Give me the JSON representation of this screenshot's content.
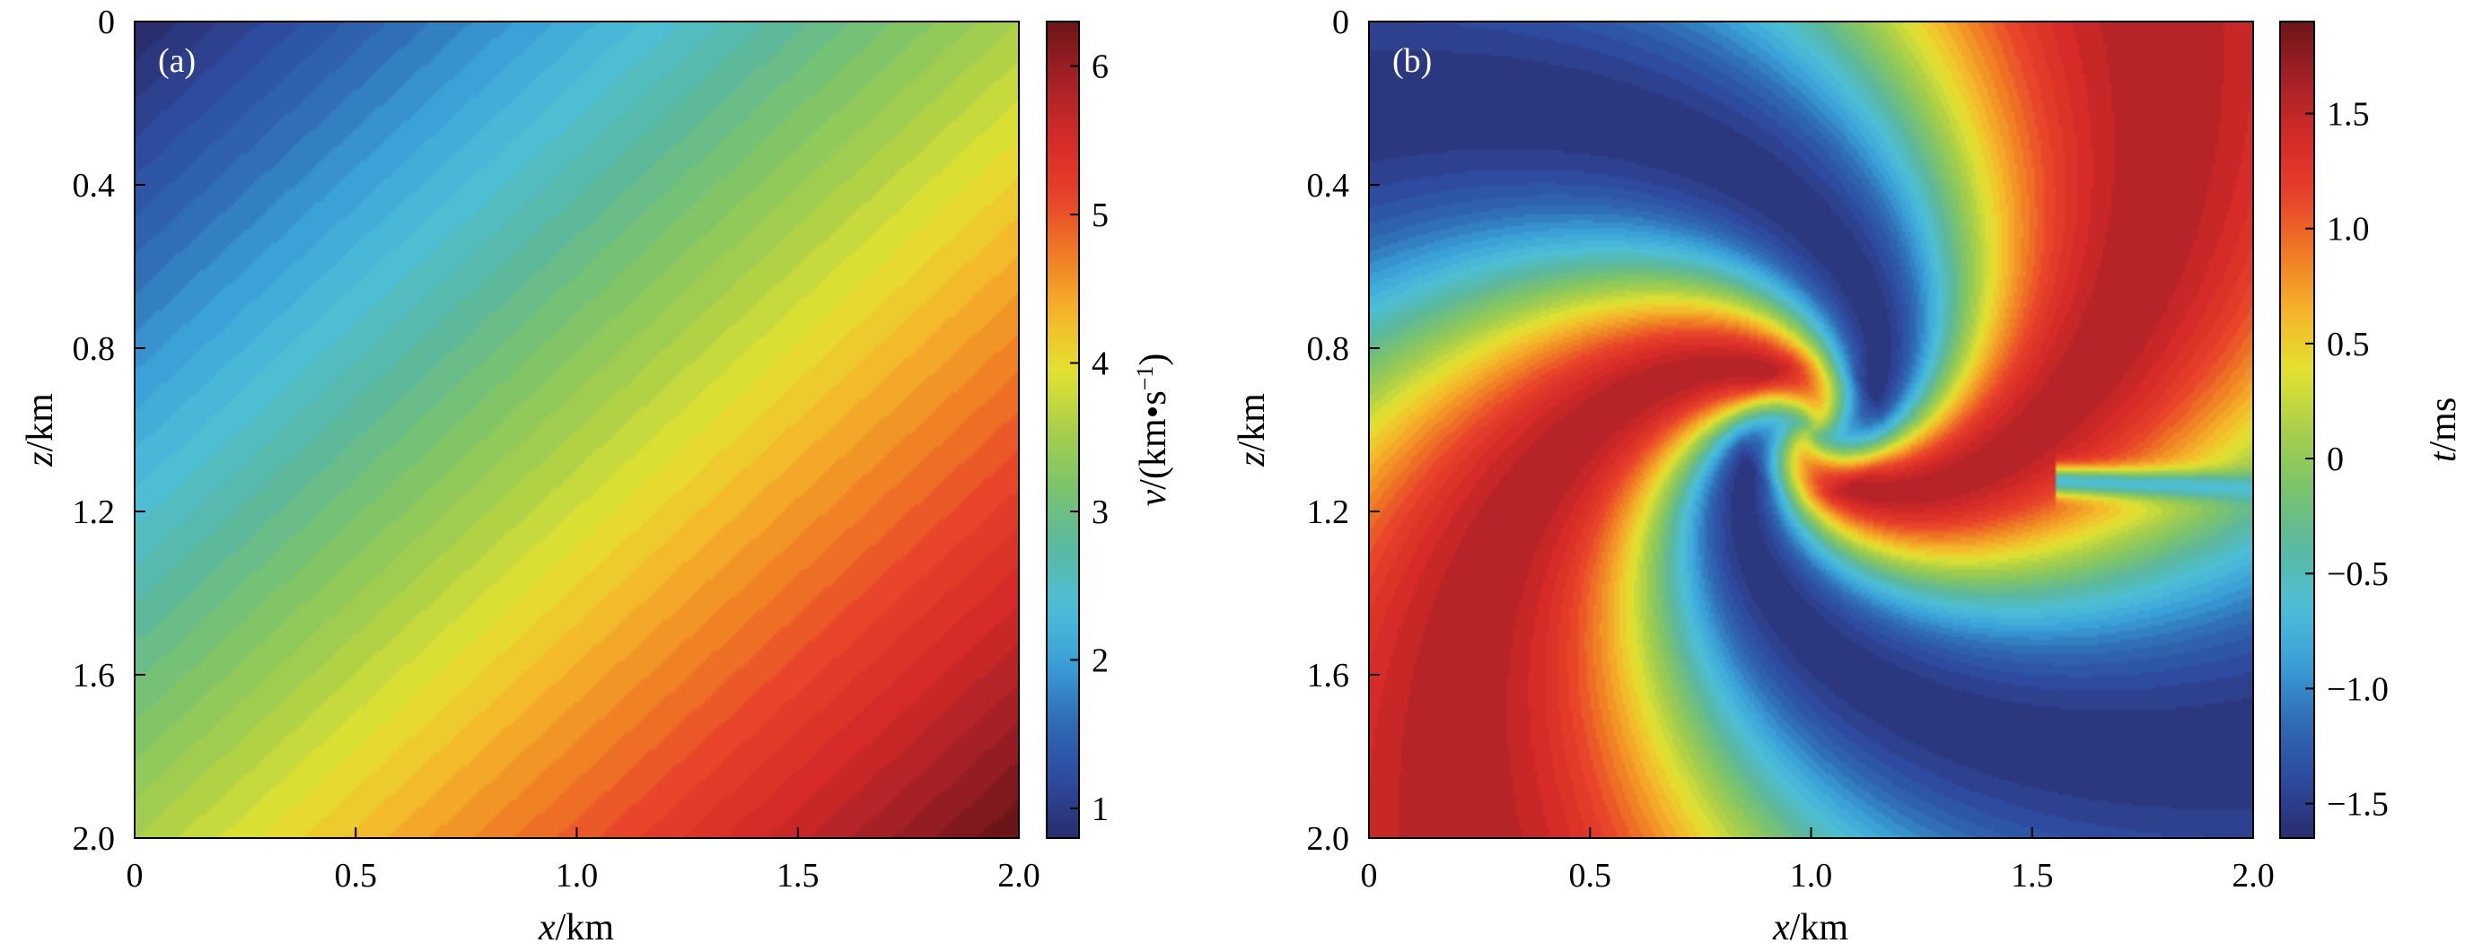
{
  "chart_data": [
    {
      "type": "heatmap",
      "panel_label": "(a)",
      "xlabel_var": "x",
      "xlabel_unit": "/km",
      "ylabel_var": "z",
      "ylabel_unit": "/km",
      "x_ticks": [
        "0",
        "0.5",
        "1.0",
        "1.5",
        "2.0"
      ],
      "y_ticks": [
        "0",
        "0.4",
        "0.8",
        "1.2",
        "1.6",
        "2.0"
      ],
      "x_tick_values": [
        0,
        0.5,
        1.0,
        1.5,
        2.0
      ],
      "y_tick_values": [
        0,
        0.4,
        0.8,
        1.2,
        1.6,
        2.0
      ],
      "xlim": [
        0,
        2.0
      ],
      "ylim": [
        0,
        2.0
      ],
      "y_inverted": true,
      "field_description": "velocity increasing linearly along diagonal from top-left to bottom-right",
      "field": {
        "v_at_x0_z0": 0.8,
        "v_at_x2_z2": 6.3,
        "vmin": 0.8,
        "vmax": 6.3
      },
      "colorbar": {
        "label_var": "v",
        "label_unit": "/(km•s",
        "label_sup": "−1",
        "label_close": ")",
        "ticks": [
          "1",
          "2",
          "3",
          "4",
          "5",
          "6"
        ],
        "tick_values": [
          1,
          2,
          3,
          4,
          5,
          6
        ],
        "range": [
          0.8,
          6.3
        ],
        "colormap": "jet"
      }
    },
    {
      "type": "heatmap",
      "panel_label": "(b)",
      "xlabel_var": "x",
      "xlabel_unit": "/km",
      "ylabel_var": "z",
      "ylabel_unit": "/km",
      "x_ticks": [
        "0",
        "0.5",
        "1.0",
        "1.5",
        "2.0"
      ],
      "y_ticks": [
        "0",
        "0.4",
        "0.8",
        "1.2",
        "1.6",
        "2.0"
      ],
      "x_tick_values": [
        0,
        0.5,
        1.0,
        1.5,
        2.0
      ],
      "y_tick_values": [
        0,
        0.4,
        0.8,
        1.2,
        1.6,
        2.0
      ],
      "xlim": [
        0,
        2.0
      ],
      "ylim": [
        0,
        2.0
      ],
      "y_inverted": true,
      "source_point": {
        "x": 1.0,
        "z": 1.0
      },
      "field_description": "travel-time difference with curved positive and negative lobes radiating from the source at (1.0, 1.0)",
      "colorbar": {
        "label_var": "t",
        "label_unit": "/ms",
        "ticks": [
          "1.5",
          "1.0",
          "0.5",
          "0",
          "−0.5",
          "−1.0",
          "−1.5"
        ],
        "tick_values": [
          1.5,
          1.0,
          0.5,
          0,
          -0.5,
          -1.0,
          -1.5
        ],
        "range": [
          -1.65,
          1.9
        ],
        "colormap": "jet"
      }
    }
  ],
  "colormap_stops": [
    "#2a2d6e",
    "#2e4a9e",
    "#2f6bb3",
    "#3aa0d8",
    "#4dbfd8",
    "#5ab8a0",
    "#7cc36c",
    "#a8cf4a",
    "#e3e230",
    "#f5b52a",
    "#f07c25",
    "#e8412a",
    "#d52a28",
    "#a52126",
    "#6c1518"
  ]
}
